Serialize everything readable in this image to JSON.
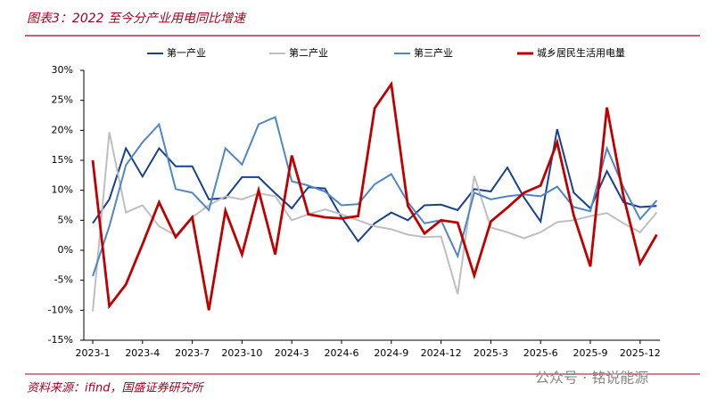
{
  "chart_data": {
    "type": "line",
    "title": "图表3：2022 至今分产业用电同比增速",
    "source": "资料来源：ifind，国盛证券研究所",
    "watermark": "公众号 · 铭说能源",
    "categories": [
      "2023-1",
      null,
      null,
      "2023-4",
      null,
      null,
      "2023-7",
      null,
      null,
      "2023-10",
      null,
      null,
      "2024-3",
      null,
      null,
      "2024-6",
      null,
      null,
      "2024-9",
      null,
      null,
      "2024-12",
      null,
      null,
      "2025-3",
      null,
      null,
      "2025-6",
      null,
      null,
      "2025-9",
      null,
      null,
      "2025-12",
      null
    ],
    "series": [
      {
        "name": "第一产业",
        "color": "#17408f",
        "values": [
          4.5,
          8.5,
          17,
          12.3,
          17,
          14,
          14,
          8.5,
          8.7,
          12.2,
          12.2,
          9.5,
          7,
          10.5,
          10.3,
          5.5,
          1.5,
          4.5,
          6.3,
          5,
          7.5,
          7.6,
          6.7,
          10.2,
          9.8,
          13.8,
          8.8,
          4.8,
          20.2,
          9.6,
          7,
          13.2,
          8,
          7.2,
          7.4
        ]
      },
      {
        "name": "第二产业",
        "color": "#bfbfbf",
        "values": [
          -10.2,
          19.7,
          6.3,
          7.5,
          4,
          2.5,
          5.5,
          7.5,
          9,
          8.5,
          9.5,
          9,
          5,
          6,
          6.8,
          6,
          5,
          4,
          3.5,
          2.6,
          2.2,
          2.3,
          -7.3,
          12.4,
          3.8,
          3,
          2,
          3,
          4.7,
          5,
          5.7,
          6.2,
          4.5,
          3,
          6.3
        ]
      },
      {
        "name": "第三产业",
        "color": "#4f86c6",
        "values": [
          -4.3,
          4,
          14.2,
          18,
          21,
          10.2,
          9.6,
          6.7,
          17,
          14.3,
          21,
          22.2,
          11.5,
          10.8,
          9.8,
          7.5,
          7.7,
          11,
          12.7,
          8,
          4.5,
          5,
          -1,
          9.6,
          8.5,
          9,
          9.3,
          9,
          10.6,
          7.2,
          6.5,
          17,
          10.5,
          5.2,
          8.3
        ]
      },
      {
        "name": "城乡居民生活用电量",
        "color": "#c00000",
        "values": [
          15,
          -9.3,
          -5.7,
          1,
          8,
          2.2,
          5.5,
          -10,
          6.6,
          -0.7,
          10,
          -0.7,
          15.8,
          6,
          5.5,
          5.3,
          5.7,
          23.7,
          27.7,
          7.4,
          2.8,
          5,
          4.6,
          -4.2,
          4.8,
          7.1,
          9.6,
          10.8,
          18,
          5.8,
          -2.7,
          23.8,
          9,
          -2.2,
          2.6
        ]
      }
    ],
    "ylim": [
      -15,
      30
    ],
    "yticks": [
      {
        "value": -15,
        "label": "-15%"
      },
      {
        "value": -10,
        "label": "-10%"
      },
      {
        "value": -5,
        "label": "-5%"
      },
      {
        "value": 0,
        "label": "0%"
      },
      {
        "value": 5,
        "label": "5%"
      },
      {
        "value": 10,
        "label": "10%"
      },
      {
        "value": 15,
        "label": "15%"
      },
      {
        "value": 20,
        "label": "20%"
      },
      {
        "value": 25,
        "label": "25%"
      },
      {
        "value": 30,
        "label": "30%"
      }
    ],
    "grid": false,
    "legend": "top"
  }
}
